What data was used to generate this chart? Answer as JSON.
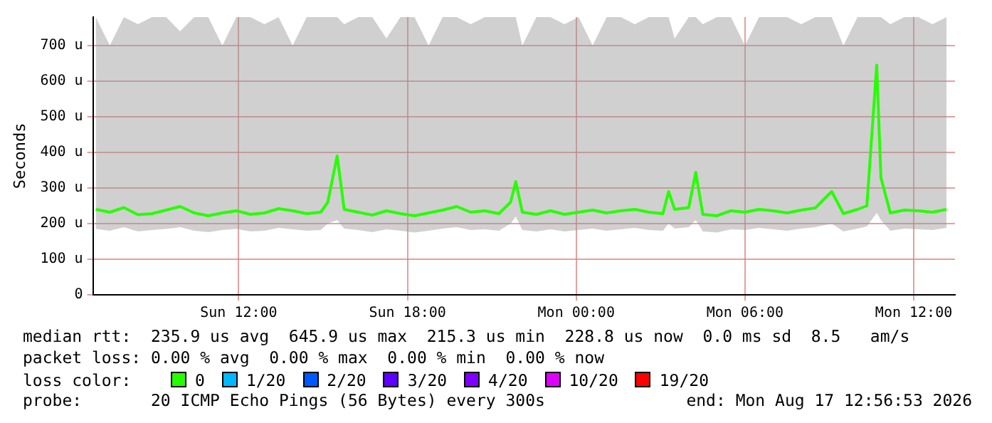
{
  "chart_data": {
    "type": "line",
    "ylabel": "Seconds",
    "xlim": [
      "2026-08-16T06:49",
      "2026-08-17T13:28"
    ],
    "ylim": [
      0,
      780
    ],
    "xticks": [
      {
        "value": "2026-08-16T12:00",
        "label": "Sun 12:00"
      },
      {
        "value": "2026-08-16T18:00",
        "label": "Sun 18:00"
      },
      {
        "value": "2026-08-17T00:00",
        "label": "Mon 00:00"
      },
      {
        "value": "2026-08-17T06:00",
        "label": "Mon 06:00"
      },
      {
        "value": "2026-08-17T12:00",
        "label": "Mon 12:00"
      }
    ],
    "yticks": [
      0,
      {
        "value": 100,
        "label": "100 u"
      },
      {
        "value": 200,
        "label": "200 u"
      },
      {
        "value": 300,
        "label": "300 u"
      },
      {
        "value": 400,
        "label": "400 u"
      },
      {
        "value": 500,
        "label": "500 u"
      },
      {
        "value": 600,
        "label": "600 u"
      },
      {
        "value": 700,
        "label": "700 u"
      }
    ],
    "grid": true,
    "legend": "bottom",
    "legend_title": "loss color:",
    "marker": "none",
    "line_style": "solid",
    "series": [
      {
        "name": "0",
        "color": "#26ff00",
        "x": [
          "2026-08-16T06:55",
          "2026-08-16T07:25",
          "2026-08-16T07:55",
          "2026-08-16T08:25",
          "2026-08-16T08:55",
          "2026-08-16T09:25",
          "2026-08-16T09:55",
          "2026-08-16T10:25",
          "2026-08-16T10:55",
          "2026-08-16T11:25",
          "2026-08-16T11:55",
          "2026-08-16T12:25",
          "2026-08-16T12:55",
          "2026-08-16T13:25",
          "2026-08-16T13:55",
          "2026-08-16T14:25",
          "2026-08-16T14:55",
          "2026-08-16T15:10",
          "2026-08-16T15:30",
          "2026-08-16T15:45",
          "2026-08-16T16:15",
          "2026-08-16T16:45",
          "2026-08-16T17:15",
          "2026-08-16T17:45",
          "2026-08-16T18:15",
          "2026-08-16T18:45",
          "2026-08-16T19:15",
          "2026-08-16T19:45",
          "2026-08-16T20:15",
          "2026-08-16T20:45",
          "2026-08-16T21:15",
          "2026-08-16T21:40",
          "2026-08-16T21:51",
          "2026-08-16T22:05",
          "2026-08-16T22:35",
          "2026-08-16T23:05",
          "2026-08-16T23:35",
          "2026-08-17T00:05",
          "2026-08-17T00:35",
          "2026-08-17T01:05",
          "2026-08-17T01:35",
          "2026-08-17T02:05",
          "2026-08-17T02:35",
          "2026-08-17T03:05",
          "2026-08-17T03:17",
          "2026-08-17T03:30",
          "2026-08-17T04:00",
          "2026-08-17T04:15",
          "2026-08-17T04:30",
          "2026-08-17T05:00",
          "2026-08-17T05:30",
          "2026-08-17T06:00",
          "2026-08-17T06:30",
          "2026-08-17T07:00",
          "2026-08-17T07:30",
          "2026-08-17T08:00",
          "2026-08-17T08:30",
          "2026-08-17T09:05",
          "2026-08-17T09:30",
          "2026-08-17T10:00",
          "2026-08-17T10:20",
          "2026-08-17T10:41",
          "2026-08-17T10:50",
          "2026-08-17T11:10",
          "2026-08-17T11:40",
          "2026-08-17T12:10",
          "2026-08-17T12:40",
          "2026-08-17T13:10"
        ],
        "values": [
          240,
          232,
          245,
          225,
          228,
          238,
          248,
          230,
          222,
          230,
          236,
          226,
          230,
          242,
          236,
          228,
          232,
          260,
          390,
          240,
          232,
          224,
          236,
          228,
          222,
          230,
          238,
          248,
          232,
          236,
          228,
          260,
          318,
          232,
          226,
          236,
          226,
          232,
          238,
          230,
          236,
          240,
          232,
          228,
          290,
          240,
          245,
          344,
          226,
          222,
          236,
          232,
          240,
          236,
          230,
          238,
          244,
          290,
          228,
          240,
          250,
          645,
          329,
          230,
          238,
          236,
          232,
          240
        ],
        "lower": [
          185,
          180,
          190,
          178,
          182,
          185,
          190,
          180,
          176,
          182,
          185,
          178,
          180,
          188,
          184,
          180,
          182,
          200,
          210,
          186,
          182,
          176,
          184,
          180,
          175,
          180,
          186,
          190,
          182,
          184,
          180,
          200,
          220,
          182,
          178,
          184,
          178,
          182,
          186,
          180,
          184,
          188,
          182,
          180,
          200,
          186,
          190,
          210,
          178,
          175,
          184,
          182,
          188,
          184,
          180,
          186,
          190,
          200,
          178,
          186,
          192,
          230,
          210,
          180,
          186,
          184,
          182,
          188
        ],
        "upper": [
          780,
          700,
          780,
          760,
          780,
          780,
          740,
          780,
          780,
          700,
          780,
          780,
          760,
          780,
          700,
          780,
          780,
          780,
          780,
          760,
          780,
          780,
          720,
          780,
          780,
          700,
          780,
          780,
          760,
          780,
          780,
          780,
          780,
          700,
          780,
          780,
          760,
          780,
          700,
          780,
          780,
          760,
          780,
          780,
          780,
          720,
          780,
          780,
          760,
          780,
          780,
          700,
          780,
          780,
          780,
          760,
          780,
          780,
          700,
          780,
          780,
          780,
          780,
          760,
          780,
          780,
          760,
          780
        ]
      },
      {
        "name": "1/20",
        "color": "#00b8ff"
      },
      {
        "name": "2/20",
        "color": "#0059ff"
      },
      {
        "name": "3/20",
        "color": "#5e00ff"
      },
      {
        "name": "4/20",
        "color": "#7e00ff"
      },
      {
        "name": "10/20",
        "color": "#dd00ff"
      },
      {
        "name": "19/20",
        "color": "#ff0000"
      }
    ],
    "annotations": [
      "median rtt:  235.9 us avg  645.9 us max  215.3 us min  228.8 us now  0.0 ms sd  8.5   am/s",
      "packet loss: 0.00 % avg  0.00 % max  0.00 % min  0.00 % now",
      "probe:       20 ICMP Echo Pings (56 Bytes) every 300s",
      "end: Mon Aug 17 12:56:53 2026"
    ]
  }
}
